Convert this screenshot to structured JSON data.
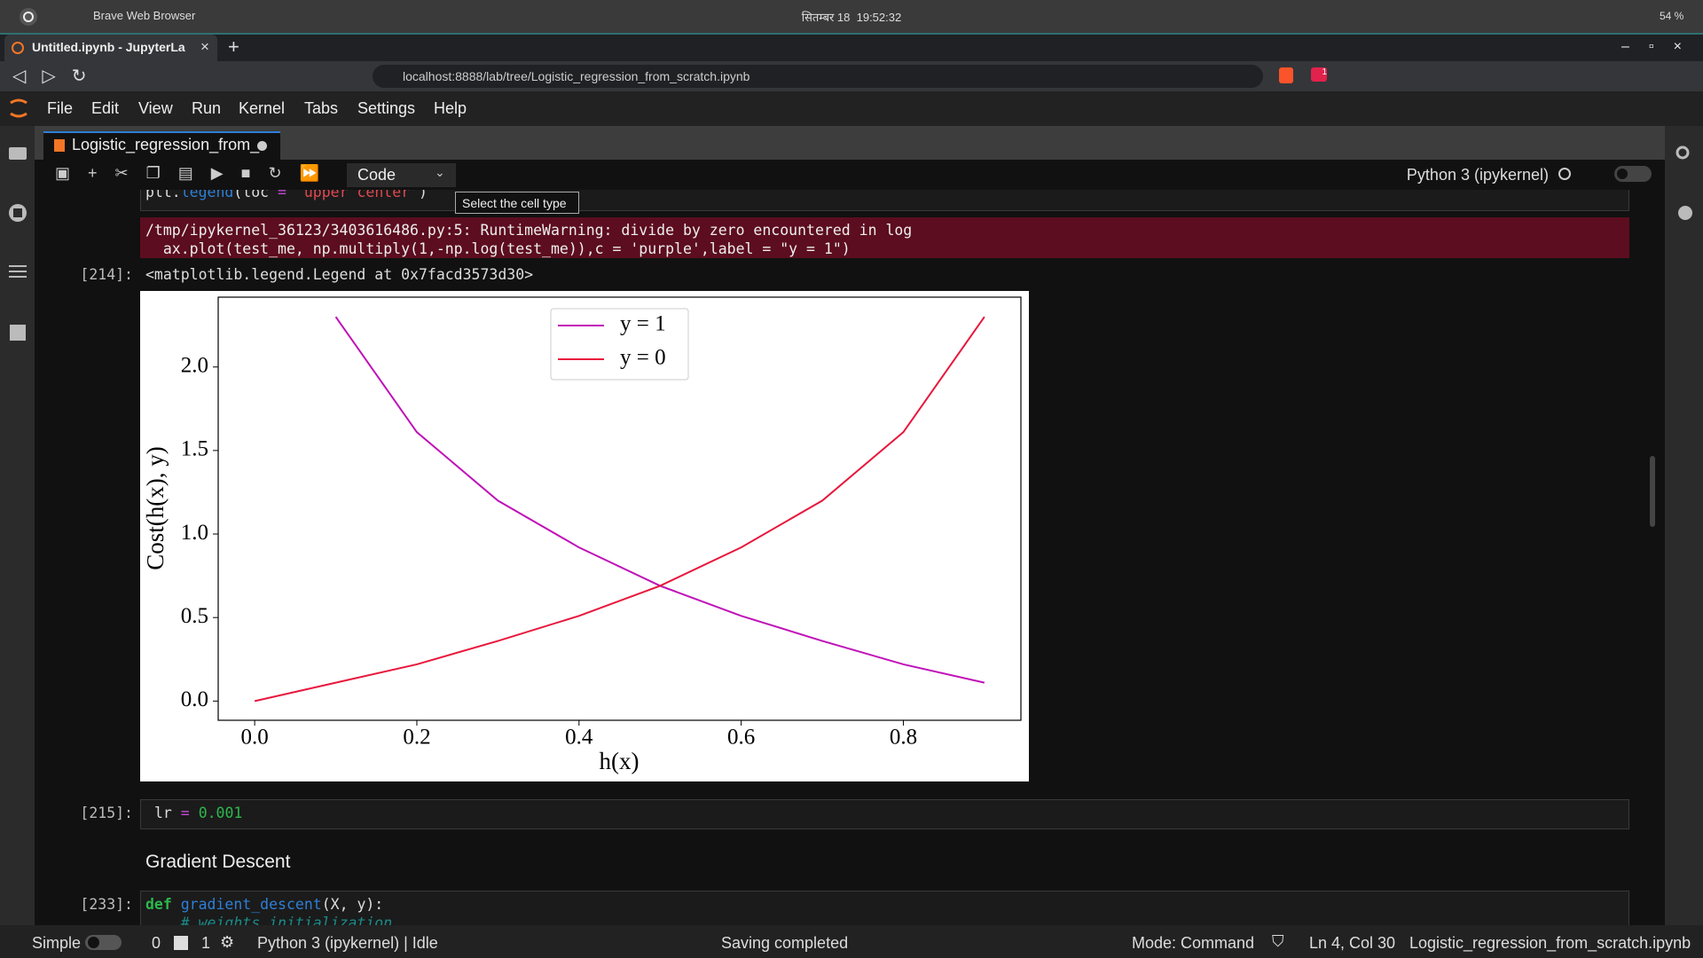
{
  "os_bar": {
    "app": "Brave Web Browser",
    "clock": "सितम्बर 18  19:52:32",
    "battery": "54 %"
  },
  "browser": {
    "tab_title": "Untitled.ipynb - JupyterLa",
    "url": "localhost:8888/lab/tree/Logistic_regression_from_scratch.ipynb",
    "badge": "1"
  },
  "menu": [
    "File",
    "Edit",
    "View",
    "Run",
    "Kernel",
    "Tabs",
    "Settings",
    "Help"
  ],
  "notebook": {
    "tab_title": "Logistic_regression_from_",
    "cell_type": "Code",
    "kernel": "Python 3 (ipykernel)",
    "tooltip": "Select the cell type",
    "cells": [
      {
        "lines": [
          [
            "plt.",
            "legend",
            "(",
            "loc",
            " = ",
            "'upper center'",
            ")"
          ]
        ]
      },
      {
        "stderr": [
          "/tmp/ipykernel_36123/3403616486.py:5: RuntimeWarning: divide by zero encountered in log",
          "  ax.plot(test_me, np.multiply(1,-np.log(test_me)),c = 'purple',label = \"y = 1\")"
        ]
      },
      {
        "prompt": "[214]:",
        "output": "<matplotlib.legend.Legend at 0x7facd3573d30>"
      },
      {
        "prompt": "[215]:",
        "lines": [
          [
            "lr",
            " = ",
            "0.001"
          ]
        ]
      },
      {
        "markdown": "Gradient Descent"
      },
      {
        "prompt": "[233]:",
        "lines": [
          [
            "def",
            " ",
            "gradient_descent",
            "(X, y):"
          ],
          [
            "    # weights initialization"
          ]
        ]
      }
    ]
  },
  "status_bar": {
    "mode_switch": "Simple",
    "terminals": "0",
    "kernels": "1",
    "kernel_status": "Python 3 (ipykernel) | Idle",
    "message": "Saving completed",
    "mode": "Mode: Command",
    "cursor": "Ln 4, Col 30",
    "file": "Logistic_regression_from_scratch.ipynb"
  },
  "chart_data": {
    "type": "line",
    "xlabel": "h(x)",
    "ylabel": "Cost(h(x), y)",
    "x": [
      0,
      0.1,
      0.2,
      0.3,
      0.4,
      0.5,
      0.6,
      0.7,
      0.8,
      0.9
    ],
    "series": [
      {
        "name": "y = 1",
        "color": "#c011b8",
        "values": [
          null,
          2.3,
          1.61,
          1.2,
          0.92,
          0.69,
          0.51,
          0.36,
          0.22,
          0.11
        ]
      },
      {
        "name": "y = 0",
        "color": "#e8173c",
        "values": [
          0,
          0.11,
          0.22,
          0.36,
          0.51,
          0.69,
          0.92,
          1.2,
          1.61,
          2.3
        ]
      }
    ],
    "xlim": [
      -0.045,
      0.945
    ],
    "ylim": [
      -0.115,
      2.418
    ],
    "xticks": [
      {
        "value": 0,
        "label": "0.0"
      },
      0.2,
      0.4,
      0.6,
      0.8
    ],
    "yticks": [
      {
        "value": 0,
        "label": "0.0"
      },
      0.5,
      {
        "value": 1,
        "label": "1.0"
      },
      1.5,
      {
        "value": 2,
        "label": "2.0"
      }
    ],
    "grid": false,
    "legend": "upper center"
  }
}
